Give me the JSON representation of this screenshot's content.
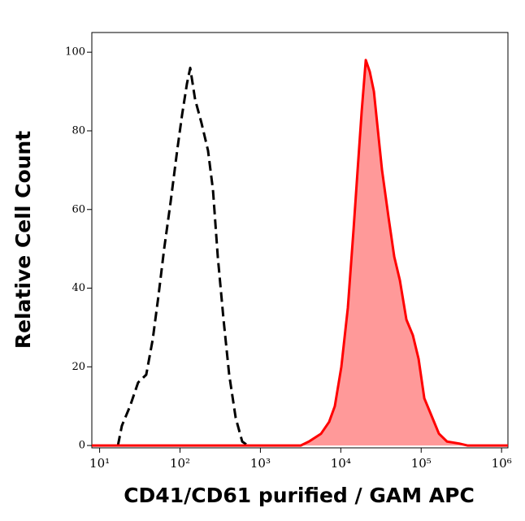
{
  "chart_data": {
    "type": "histogram_overlay",
    "xlabel": "CD41/CD61 purified / GAM APC",
    "ylabel": "Relative Cell Count",
    "x_scale": "log",
    "xlim": [
      8,
      1200000
    ],
    "xticks": [
      {
        "value": 10,
        "label": "10¹"
      },
      {
        "value": 100,
        "label": "10²"
      },
      {
        "value": 1000,
        "label": "10³"
      },
      {
        "value": 10000,
        "label": "10⁴"
      },
      {
        "value": 100000,
        "label": "10⁵"
      },
      {
        "value": 1000000,
        "label": "10⁶"
      }
    ],
    "ylim": [
      -0.6,
      105
    ],
    "yticks": [
      0,
      20,
      40,
      60,
      80,
      100
    ],
    "series": [
      {
        "color": "#000000",
        "line_style": "dashed",
        "x": [
          16.9,
          18.9,
          23.9,
          30.1,
          38,
          45.8,
          53.9,
          63.5,
          76.5,
          92.2,
          106,
          122,
          134,
          154,
          185,
          223,
          257,
          295,
          348,
          409,
          493,
          594,
          698
        ],
        "values": [
          0,
          5,
          10,
          16,
          18,
          27,
          38,
          50,
          62,
          75,
          84,
          92,
          96,
          88,
          82,
          75,
          65,
          48,
          32,
          18,
          7,
          1,
          0
        ]
      },
      {
        "color": "#ff0000",
        "line_style": "solid",
        "fill": "#ff9999",
        "x": [
          8,
          3177,
          4009,
          5680,
          7160,
          8430,
          10160,
          12240,
          14420,
          16190,
          18200,
          20460,
          22970,
          25820,
          28990,
          32590,
          39270,
          46240,
          54330,
          65490,
          78900,
          92880,
          109400,
          131800,
          166300,
          209800,
          297300,
          375300,
          1200000
        ],
        "values": [
          0,
          0,
          1,
          3,
          6,
          10,
          20,
          35,
          55,
          70,
          85,
          98,
          95,
          90,
          80,
          70,
          58,
          48,
          42,
          32,
          28,
          22,
          12,
          8,
          3,
          1,
          0.5,
          0,
          0
        ]
      }
    ]
  }
}
